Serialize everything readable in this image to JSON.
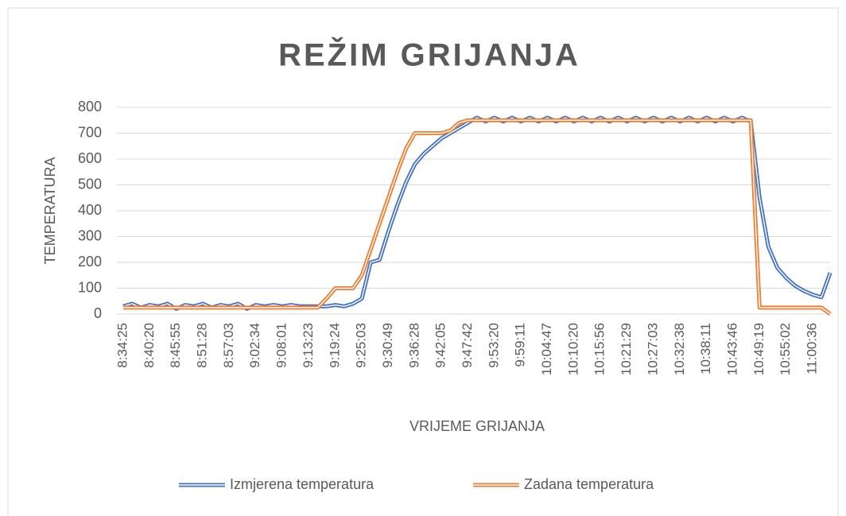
{
  "chart_data": {
    "type": "line",
    "title": "REŽIM GRIJANJA",
    "xlabel": "VRIJEME GRIJANJA",
    "ylabel": "TEMPERATURA",
    "categories": [
      "8:34:25",
      null,
      null,
      "8:40:20",
      null,
      null,
      "8:45:55",
      null,
      null,
      "8:51:28",
      null,
      null,
      "8:57:03",
      null,
      null,
      "9:02:34",
      null,
      null,
      "9:08:01",
      null,
      null,
      "9:13:23",
      null,
      null,
      "9:19:24",
      null,
      null,
      "9:25:03",
      null,
      null,
      "9:30:49",
      null,
      null,
      "9:36:28",
      null,
      null,
      "9:42:05",
      null,
      null,
      "9:47:42",
      null,
      null,
      "9:53:20",
      null,
      null,
      "9:59:11",
      null,
      null,
      "10:04:47",
      null,
      null,
      "10:10:20",
      null,
      null,
      "10:15:56",
      null,
      null,
      "10:21:29",
      null,
      null,
      "10:27:03",
      null,
      null,
      "10:32:38",
      null,
      null,
      "10:38:11",
      null,
      null,
      "10:43:46",
      null,
      null,
      "10:49:19",
      null,
      null,
      "10:55:02",
      null,
      null,
      "11:00:36",
      null,
      null
    ],
    "series": [
      {
        "name": "Izmjerena temperatura",
        "color": "#4472c4",
        "values": [
          30,
          40,
          25,
          35,
          30,
          40,
          20,
          35,
          30,
          40,
          25,
          35,
          30,
          40,
          20,
          35,
          30,
          35,
          30,
          35,
          30,
          30,
          30,
          30,
          35,
          30,
          40,
          60,
          200,
          210,
          320,
          420,
          510,
          580,
          620,
          650,
          680,
          700,
          720,
          740,
          760,
          745,
          760,
          745,
          760,
          745,
          760,
          745,
          760,
          745,
          760,
          745,
          760,
          745,
          760,
          745,
          760,
          745,
          760,
          745,
          760,
          745,
          760,
          745,
          760,
          745,
          760,
          745,
          760,
          745,
          760,
          745,
          450,
          260,
          180,
          140,
          110,
          90,
          75,
          65,
          160
        ]
      },
      {
        "name": "Zadana temperatura",
        "color": "#ed7d31",
        "values": [
          25,
          25,
          25,
          25,
          25,
          25,
          25,
          25,
          25,
          25,
          25,
          25,
          25,
          25,
          25,
          25,
          25,
          25,
          25,
          25,
          25,
          25,
          25,
          60,
          100,
          100,
          100,
          150,
          250,
          350,
          450,
          550,
          640,
          700,
          700,
          700,
          700,
          710,
          740,
          750,
          750,
          750,
          750,
          750,
          750,
          750,
          750,
          750,
          750,
          750,
          750,
          750,
          750,
          750,
          750,
          750,
          750,
          750,
          750,
          750,
          750,
          750,
          750,
          750,
          750,
          750,
          750,
          750,
          750,
          750,
          750,
          750,
          25,
          25,
          25,
          25,
          25,
          25,
          25,
          25,
          0
        ]
      }
    ],
    "ylim": [
      0,
      800
    ],
    "yticks": [
      0,
      100,
      200,
      300,
      400,
      500,
      600,
      700,
      800
    ],
    "grid": true,
    "legend": "bottom"
  }
}
